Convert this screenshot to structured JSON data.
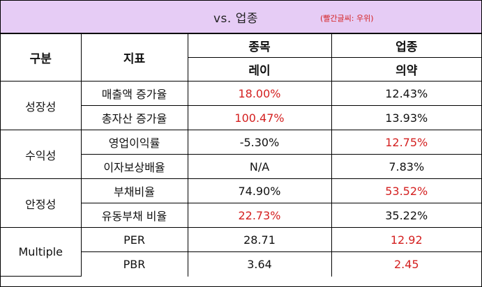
{
  "header": {
    "title": "vs.  업종",
    "note": "(빨간글씨: 우위)"
  },
  "columns": {
    "category": "구분",
    "metric": "지표",
    "stock": "종목",
    "stock_name": "레이",
    "industry": "업종",
    "industry_name": "의약"
  },
  "groups": [
    {
      "name": "성장성",
      "rows": [
        {
          "metric": "매출액 증가율",
          "stock": "18.00%",
          "industry": "12.43%",
          "winner": "stock"
        },
        {
          "metric": "총자산 증가율",
          "stock": "100.47%",
          "industry": "13.93%",
          "winner": "stock"
        }
      ]
    },
    {
      "name": "수익성",
      "rows": [
        {
          "metric": "영업이익률",
          "stock": "-5.30%",
          "industry": "12.75%",
          "winner": "industry"
        },
        {
          "metric": "이자보상배율",
          "stock": "N/A",
          "industry": "7.83%",
          "winner": "none"
        }
      ]
    },
    {
      "name": "안정성",
      "rows": [
        {
          "metric": "부채비율",
          "stock": "74.90%",
          "industry": "53.52%",
          "winner": "industry"
        },
        {
          "metric": "유동부채 비율",
          "stock": "22.73%",
          "industry": "35.22%",
          "winner": "stock"
        }
      ]
    },
    {
      "name": "Multiple",
      "rows": [
        {
          "metric": "PER",
          "stock": "28.71",
          "industry": "12.92",
          "winner": "industry"
        },
        {
          "metric": "PBR",
          "stock": "3.64",
          "industry": "2.45",
          "winner": "industry"
        }
      ]
    }
  ],
  "colors": {
    "header_bg": "#e6ccf5",
    "highlight": "#d42020"
  }
}
